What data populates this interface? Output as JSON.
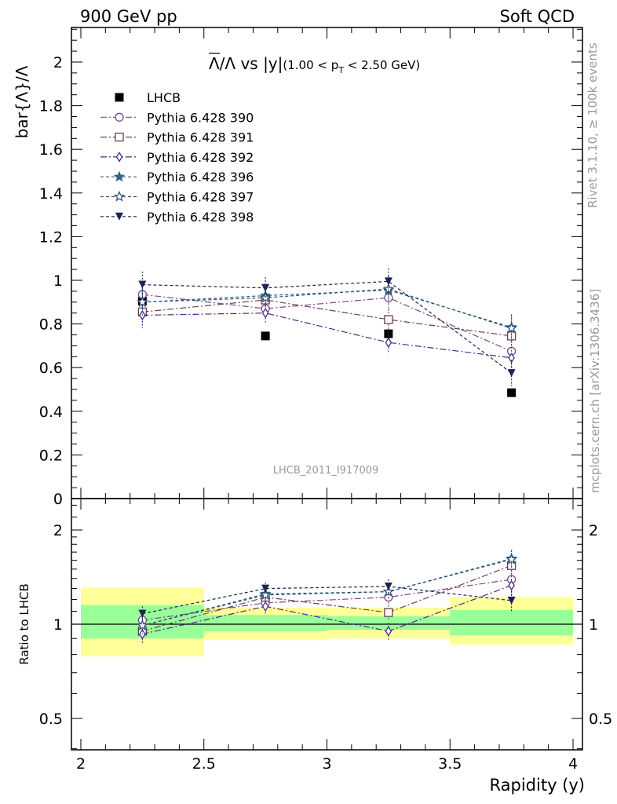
{
  "header": {
    "left": "900 GeV pp",
    "right": "Soft QCD"
  },
  "side_labels": {
    "rivet": "Rivet 3.1.10, ≥ 100k events",
    "mcplots": "mcplots.cern.ch [arXiv:1306.3436]"
  },
  "watermark": "LHCB_2011_I917009",
  "colors": {
    "data": "#000000",
    "pythia390": "#7a4a8a",
    "pythia391": "#6a3f56",
    "pythia392": "#4a2c86",
    "pythia396": "#2f6680",
    "pythia397": "#2d4f76",
    "pythia398": "#1b2452",
    "band_inner": "#99ff99",
    "band_outer": "#ffff99"
  },
  "chart_data": [
    {
      "type": "scatter",
      "title_parts": {
        "main": "Λ/Λ vs |y|",
        "bar_symbol": "Λ",
        "sub_open": "(1.00 < p",
        "sub_T": "T",
        "sub_close": " < 2.50 GeV)"
      },
      "ylabel": "bar{Λ}/Λ",
      "xlim": [
        2,
        4
      ],
      "ylim": [
        0,
        2.15
      ],
      "yticks": [
        "0",
        "0.2",
        "0.4",
        "0.6",
        "0.8",
        "1",
        "1.2",
        "1.4",
        "1.6",
        "1.8",
        "2"
      ],
      "legend_position": "top-left",
      "x": [
        2.25,
        2.75,
        3.25,
        3.75
      ],
      "series": [
        {
          "name": "LHCB",
          "marker": "square-filled",
          "color_key": "data",
          "values": [
            0.905,
            0.745,
            0.755,
            0.485
          ],
          "errors": [
            0.01,
            0.01,
            0.01,
            0.01
          ]
        },
        {
          "name": "Pythia 6.428 390",
          "marker": "circle-open",
          "color_key": "pythia390",
          "dash": "8,3,2,3",
          "values": [
            0.935,
            0.87,
            0.92,
            0.675
          ],
          "errors": [
            0.06,
            0.05,
            0.06,
            0.06
          ]
        },
        {
          "name": "Pythia 6.428 391",
          "marker": "square-open",
          "color_key": "pythia391",
          "dash": "8,3,2,3",
          "values": [
            0.855,
            0.91,
            0.82,
            0.745
          ],
          "errors": [
            0.06,
            0.05,
            0.05,
            0.05
          ]
        },
        {
          "name": "Pythia 6.428 392",
          "marker": "diamond-open",
          "color_key": "pythia392",
          "dash": "8,3,2,3",
          "values": [
            0.84,
            0.85,
            0.715,
            0.645
          ],
          "errors": [
            0.06,
            0.05,
            0.05,
            0.05
          ]
        },
        {
          "name": "Pythia 6.428 396",
          "marker": "star-filled",
          "color_key": "pythia396",
          "dash": "4,3",
          "values": [
            0.9,
            0.93,
            0.955,
            0.785
          ],
          "errors": [
            0.06,
            0.05,
            0.06,
            0.06
          ]
        },
        {
          "name": "Pythia 6.428 397",
          "marker": "star-open",
          "color_key": "pythia397",
          "dash": "4,3",
          "values": [
            0.9,
            0.92,
            0.96,
            0.78
          ],
          "errors": [
            0.06,
            0.05,
            0.06,
            0.06
          ]
        },
        {
          "name": "Pythia 6.428 398",
          "marker": "triangle-down-filled",
          "color_key": "pythia398",
          "dash": "4,3",
          "values": [
            0.98,
            0.965,
            0.995,
            0.575
          ],
          "errors": [
            0.06,
            0.05,
            0.06,
            0.06
          ]
        }
      ]
    },
    {
      "type": "scatter",
      "ylabel": "Ratio to LHCB",
      "xlabel": "Rapidity (y)",
      "xlim": [
        2,
        4
      ],
      "ylim": [
        0.4,
        2.4
      ],
      "log_y": true,
      "yticks": [
        "0.5",
        "1",
        "2"
      ],
      "xticks": [
        "2",
        "2.5",
        "3",
        "3.5",
        "4"
      ],
      "bands": [
        {
          "x_range": [
            2,
            2.5
          ],
          "inner": [
            0.9,
            1.15
          ],
          "outer": [
            0.79,
            1.31
          ]
        },
        {
          "x_range": [
            2.5,
            3
          ],
          "inner": [
            0.95,
            1.07
          ],
          "outer": [
            0.89,
            1.13
          ]
        },
        {
          "x_range": [
            3,
            3.5
          ],
          "inner": [
            0.96,
            1.06
          ],
          "outer": [
            0.9,
            1.13
          ]
        },
        {
          "x_range": [
            3.5,
            4
          ],
          "inner": [
            0.92,
            1.11
          ],
          "outer": [
            0.86,
            1.22
          ]
        }
      ],
      "x": [
        2.25,
        2.75,
        3.25,
        3.75
      ],
      "series": [
        {
          "name": "Pythia 6.428 390",
          "values": [
            1.03,
            1.17,
            1.22,
            1.39
          ],
          "errors": [
            0.06,
            0.06,
            0.07,
            0.1
          ]
        },
        {
          "name": "Pythia 6.428 391",
          "values": [
            0.95,
            1.22,
            1.09,
            1.54
          ],
          "errors": [
            0.06,
            0.06,
            0.06,
            0.1
          ]
        },
        {
          "name": "Pythia 6.428 392",
          "values": [
            0.93,
            1.14,
            0.95,
            1.33
          ],
          "errors": [
            0.06,
            0.06,
            0.06,
            0.1
          ]
        },
        {
          "name": "Pythia 6.428 396",
          "values": [
            0.99,
            1.25,
            1.27,
            1.62
          ],
          "errors": [
            0.06,
            0.06,
            0.07,
            0.11
          ]
        },
        {
          "name": "Pythia 6.428 397",
          "values": [
            0.99,
            1.24,
            1.27,
            1.61
          ],
          "errors": [
            0.06,
            0.06,
            0.07,
            0.11
          ]
        },
        {
          "name": "Pythia 6.428 398",
          "values": [
            1.08,
            1.3,
            1.32,
            1.19
          ],
          "errors": [
            0.06,
            0.06,
            0.07,
            0.09
          ]
        }
      ]
    }
  ]
}
